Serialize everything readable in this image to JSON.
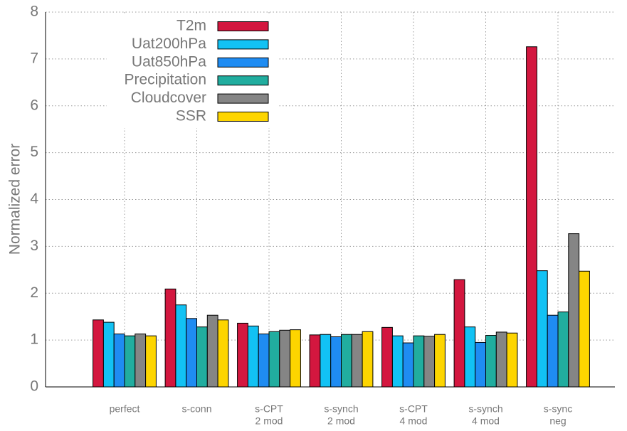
{
  "chart_data": {
    "type": "bar",
    "y_label": "Normalized error",
    "categories": [
      [
        "perfect"
      ],
      [
        "s-conn"
      ],
      [
        "s-CPT",
        "2 mod"
      ],
      [
        "s-synch",
        "2 mod"
      ],
      [
        "s-CPT",
        "4 mod"
      ],
      [
        "s-synch",
        "4 mod"
      ],
      [
        "s-sync",
        "neg"
      ]
    ],
    "series": [
      {
        "name": "T2m",
        "color": "#d3173f",
        "values": [
          1.43,
          2.09,
          1.36,
          1.11,
          1.27,
          2.29,
          7.26
        ]
      },
      {
        "name": "Uat200hPa",
        "color": "#12c2f4",
        "values": [
          1.38,
          1.75,
          1.3,
          1.12,
          1.09,
          1.28,
          2.48
        ]
      },
      {
        "name": "Uat850hPa",
        "color": "#1f8cf2",
        "values": [
          1.13,
          1.46,
          1.13,
          1.07,
          0.94,
          0.95,
          1.53
        ]
      },
      {
        "name": "Precipitation",
        "color": "#21ad9f",
        "values": [
          1.09,
          1.28,
          1.18,
          1.12,
          1.09,
          1.1,
          1.6
        ]
      },
      {
        "name": "Cloudcover",
        "color": "#858585",
        "values": [
          1.13,
          1.53,
          1.21,
          1.12,
          1.08,
          1.17,
          3.27
        ]
      },
      {
        "name": "SSR",
        "color": "#fdd500",
        "values": [
          1.09,
          1.43,
          1.22,
          1.18,
          1.12,
          1.15,
          2.47
        ]
      }
    ],
    "ylim": [
      0,
      8
    ],
    "yticks": [
      0,
      1,
      2,
      3,
      4,
      5,
      6,
      7,
      8
    ],
    "grid": true
  }
}
